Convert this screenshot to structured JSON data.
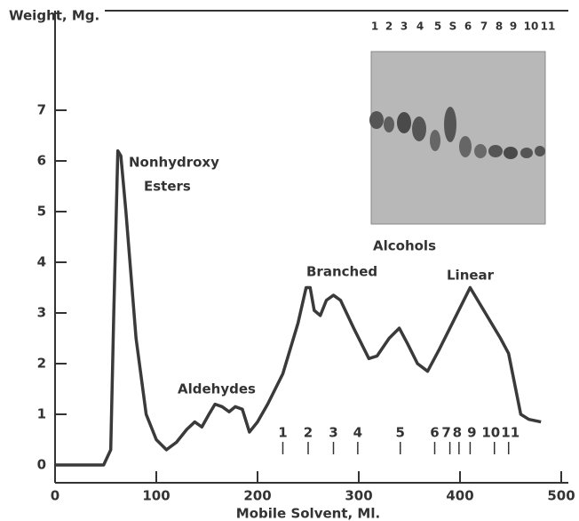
{
  "chart_data": {
    "type": "line",
    "y_label": "Weight, Mg.",
    "x_label": "Mobile Solvent, Ml.",
    "xlim": [
      0,
      500
    ],
    "ylim": [
      0,
      9
    ],
    "xticks": [
      0,
      100,
      200,
      300,
      400,
      500
    ],
    "yticks": [
      0,
      1,
      2,
      3,
      4,
      5,
      6,
      7
    ],
    "color": "#3a3a3a",
    "x": [
      0,
      48,
      55,
      58,
      62,
      65,
      70,
      80,
      90,
      100,
      110,
      120,
      130,
      138,
      145,
      152,
      158,
      165,
      172,
      178,
      185,
      192,
      200,
      210,
      225,
      240,
      248,
      252,
      256,
      262,
      268,
      275,
      282,
      295,
      310,
      318,
      330,
      340,
      348,
      358,
      368,
      380,
      395,
      410,
      425,
      440,
      448,
      455,
      460,
      468,
      480
    ],
    "values": [
      0,
      0,
      0.3,
      3,
      6.2,
      6.1,
      5,
      2.5,
      1,
      0.5,
      0.3,
      0.45,
      0.7,
      0.85,
      0.75,
      1.0,
      1.2,
      1.15,
      1.05,
      1.15,
      1.1,
      0.65,
      0.85,
      1.2,
      1.8,
      2.8,
      3.5,
      3.5,
      3.05,
      2.95,
      3.25,
      3.35,
      3.25,
      2.7,
      2.1,
      2.15,
      2.5,
      2.7,
      2.4,
      2.0,
      1.85,
      2.3,
      2.9,
      3.5,
      3.0,
      2.5,
      2.2,
      1.5,
      1.0,
      0.9,
      0.85
    ],
    "annotations": [
      "Nonhydroxy",
      "Esters",
      "Aldehydes",
      "Alcohols",
      "Branched",
      "Linear"
    ],
    "fractions": [
      {
        "label": "1",
        "x": 225
      },
      {
        "label": "2",
        "x": 250
      },
      {
        "label": "3",
        "x": 275
      },
      {
        "label": "4",
        "x": 299
      },
      {
        "label": "5",
        "x": 341
      },
      {
        "label": "6",
        "x": 375
      },
      {
        "label": "7",
        "x": 390
      },
      {
        "label": "8",
        "x": 399
      },
      {
        "label": "9",
        "x": 410
      },
      {
        "label": "10",
        "x": 434
      },
      {
        "label": "11",
        "x": 448
      }
    ],
    "lanes": [
      "1",
      "2",
      "3",
      "4",
      "5",
      "S",
      "6",
      "7",
      "8",
      "9",
      "10",
      "11"
    ]
  }
}
